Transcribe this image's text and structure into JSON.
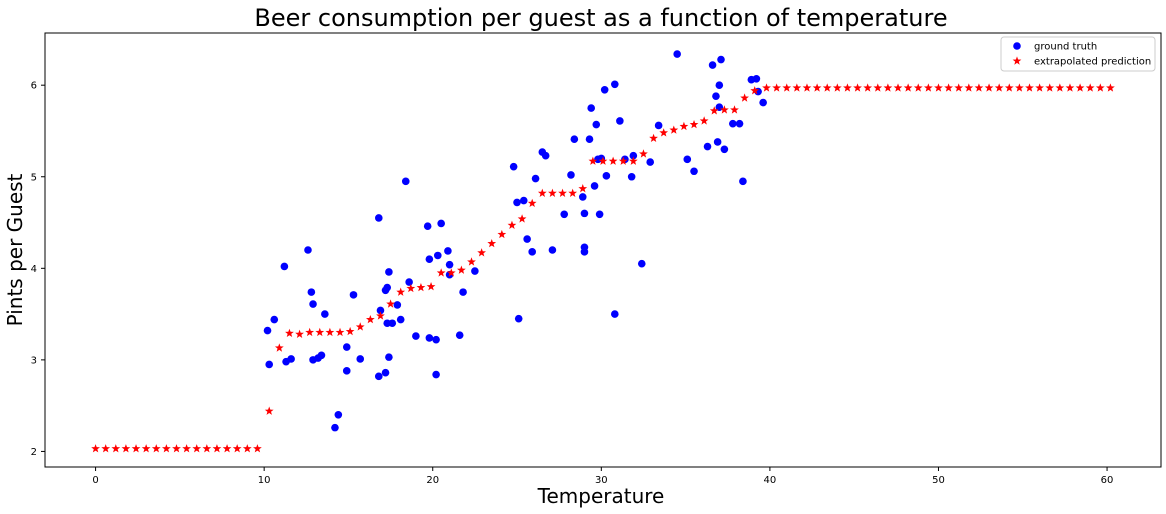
{
  "chart_data": {
    "type": "scatter",
    "title": "Beer consumption per guest as a function of temperature",
    "xlabel": "Temperature",
    "ylabel": "Pints per Guest",
    "xlim": [
      -3,
      63.2
    ],
    "ylim": [
      1.83,
      6.57
    ],
    "xticks": [
      0,
      10,
      20,
      30,
      40,
      50,
      60
    ],
    "yticks": [
      2,
      3,
      4,
      5,
      6
    ],
    "grid": false,
    "legend_position": "top-right",
    "series": [
      {
        "name": "ground truth",
        "marker": "circle",
        "color": "#0000ff",
        "points": [
          [
            10.2,
            3.32
          ],
          [
            10.3,
            2.95
          ],
          [
            10.6,
            3.44
          ],
          [
            11.2,
            4.02
          ],
          [
            11.3,
            2.98
          ],
          [
            11.6,
            3.01
          ],
          [
            12.6,
            4.2
          ],
          [
            12.8,
            3.74
          ],
          [
            12.9,
            3.61
          ],
          [
            12.9,
            3.0
          ],
          [
            13.2,
            3.02
          ],
          [
            13.4,
            3.05
          ],
          [
            13.6,
            3.5
          ],
          [
            14.2,
            2.26
          ],
          [
            14.4,
            2.4
          ],
          [
            14.9,
            2.88
          ],
          [
            14.9,
            3.14
          ],
          [
            15.3,
            3.71
          ],
          [
            15.7,
            3.01
          ],
          [
            16.8,
            4.55
          ],
          [
            16.8,
            2.82
          ],
          [
            16.9,
            3.54
          ],
          [
            17.2,
            3.76
          ],
          [
            17.2,
            2.86
          ],
          [
            17.3,
            3.79
          ],
          [
            17.3,
            3.4
          ],
          [
            17.4,
            3.96
          ],
          [
            17.4,
            3.03
          ],
          [
            17.6,
            3.4
          ],
          [
            17.9,
            3.6
          ],
          [
            18.1,
            3.44
          ],
          [
            18.4,
            4.95
          ],
          [
            18.6,
            3.85
          ],
          [
            19.0,
            3.26
          ],
          [
            19.7,
            4.46
          ],
          [
            19.8,
            4.1
          ],
          [
            19.8,
            3.24
          ],
          [
            20.2,
            3.22
          ],
          [
            20.2,
            2.84
          ],
          [
            20.3,
            4.14
          ],
          [
            20.5,
            4.49
          ],
          [
            20.9,
            4.19
          ],
          [
            21.0,
            4.04
          ],
          [
            21.0,
            3.93
          ],
          [
            21.6,
            3.27
          ],
          [
            21.8,
            3.74
          ],
          [
            22.5,
            3.97
          ],
          [
            24.8,
            5.11
          ],
          [
            25.0,
            4.72
          ],
          [
            25.1,
            3.45
          ],
          [
            25.4,
            4.74
          ],
          [
            25.6,
            4.32
          ],
          [
            25.9,
            4.18
          ],
          [
            26.1,
            4.98
          ],
          [
            26.5,
            5.27
          ],
          [
            26.7,
            5.23
          ],
          [
            27.1,
            4.2
          ],
          [
            27.8,
            4.59
          ],
          [
            28.2,
            5.02
          ],
          [
            28.4,
            5.41
          ],
          [
            28.9,
            4.78
          ],
          [
            29.0,
            4.6
          ],
          [
            29.0,
            4.23
          ],
          [
            29.0,
            4.18
          ],
          [
            29.3,
            5.41
          ],
          [
            29.4,
            5.75
          ],
          [
            29.6,
            4.9
          ],
          [
            29.7,
            5.57
          ],
          [
            29.8,
            5.19
          ],
          [
            29.9,
            4.59
          ],
          [
            30.0,
            5.2
          ],
          [
            30.2,
            5.95
          ],
          [
            30.3,
            5.01
          ],
          [
            30.8,
            6.01
          ],
          [
            30.8,
            3.5
          ],
          [
            31.1,
            5.61
          ],
          [
            31.4,
            5.19
          ],
          [
            31.8,
            5.0
          ],
          [
            31.9,
            5.23
          ],
          [
            32.4,
            4.05
          ],
          [
            32.9,
            5.16
          ],
          [
            33.4,
            5.56
          ],
          [
            34.5,
            6.34
          ],
          [
            35.1,
            5.19
          ],
          [
            35.5,
            5.06
          ],
          [
            36.3,
            5.33
          ],
          [
            36.6,
            6.22
          ],
          [
            36.8,
            5.88
          ],
          [
            36.9,
            5.38
          ],
          [
            37.0,
            6.0
          ],
          [
            37.0,
            5.76
          ],
          [
            37.1,
            6.28
          ],
          [
            37.3,
            5.3
          ],
          [
            37.8,
            5.58
          ],
          [
            38.2,
            5.58
          ],
          [
            38.4,
            4.95
          ],
          [
            38.9,
            6.06
          ],
          [
            39.2,
            6.07
          ],
          [
            39.3,
            5.93
          ],
          [
            39.6,
            5.81
          ]
        ]
      },
      {
        "name": "extrapolated prediction",
        "marker": "star",
        "color": "#ff0000",
        "points": [
          [
            0.0,
            2.03
          ],
          [
            0.6,
            2.03
          ],
          [
            1.2,
            2.03
          ],
          [
            1.8,
            2.03
          ],
          [
            2.4,
            2.03
          ],
          [
            3.0,
            2.03
          ],
          [
            3.6,
            2.03
          ],
          [
            4.2,
            2.03
          ],
          [
            4.8,
            2.03
          ],
          [
            5.4,
            2.03
          ],
          [
            6.0,
            2.03
          ],
          [
            6.6,
            2.03
          ],
          [
            7.2,
            2.03
          ],
          [
            7.8,
            2.03
          ],
          [
            8.4,
            2.03
          ],
          [
            9.0,
            2.03
          ],
          [
            9.6,
            2.03
          ],
          [
            10.3,
            2.44
          ],
          [
            10.9,
            3.13
          ],
          [
            11.5,
            3.29
          ],
          [
            12.1,
            3.28
          ],
          [
            12.7,
            3.3
          ],
          [
            13.3,
            3.3
          ],
          [
            13.9,
            3.3
          ],
          [
            14.5,
            3.3
          ],
          [
            15.1,
            3.31
          ],
          [
            15.7,
            3.36
          ],
          [
            16.3,
            3.44
          ],
          [
            16.9,
            3.48
          ],
          [
            17.5,
            3.61
          ],
          [
            18.1,
            3.74
          ],
          [
            18.7,
            3.78
          ],
          [
            19.3,
            3.79
          ],
          [
            19.9,
            3.8
          ],
          [
            20.5,
            3.95
          ],
          [
            21.1,
            3.95
          ],
          [
            21.7,
            3.98
          ],
          [
            22.3,
            4.07
          ],
          [
            22.9,
            4.17
          ],
          [
            23.5,
            4.27
          ],
          [
            24.1,
            4.37
          ],
          [
            24.7,
            4.47
          ],
          [
            25.3,
            4.54
          ],
          [
            25.9,
            4.71
          ],
          [
            26.5,
            4.82
          ],
          [
            27.1,
            4.82
          ],
          [
            27.7,
            4.82
          ],
          [
            28.3,
            4.82
          ],
          [
            28.9,
            4.87
          ],
          [
            29.5,
            5.17
          ],
          [
            30.1,
            5.17
          ],
          [
            30.7,
            5.17
          ],
          [
            31.3,
            5.17
          ],
          [
            31.9,
            5.17
          ],
          [
            32.5,
            5.25
          ],
          [
            33.1,
            5.42
          ],
          [
            33.7,
            5.48
          ],
          [
            34.3,
            5.51
          ],
          [
            34.9,
            5.55
          ],
          [
            35.5,
            5.57
          ],
          [
            36.1,
            5.61
          ],
          [
            36.7,
            5.72
          ],
          [
            37.3,
            5.73
          ],
          [
            37.9,
            5.73
          ],
          [
            38.5,
            5.86
          ],
          [
            39.1,
            5.94
          ],
          [
            39.8,
            5.97
          ],
          [
            40.4,
            5.97
          ],
          [
            41.0,
            5.97
          ],
          [
            41.6,
            5.97
          ],
          [
            42.2,
            5.97
          ],
          [
            42.8,
            5.97
          ],
          [
            43.4,
            5.97
          ],
          [
            44.0,
            5.97
          ],
          [
            44.6,
            5.97
          ],
          [
            45.2,
            5.97
          ],
          [
            45.8,
            5.97
          ],
          [
            46.4,
            5.97
          ],
          [
            47.0,
            5.97
          ],
          [
            47.6,
            5.97
          ],
          [
            48.2,
            5.97
          ],
          [
            48.8,
            5.97
          ],
          [
            49.4,
            5.97
          ],
          [
            50.0,
            5.97
          ],
          [
            50.6,
            5.97
          ],
          [
            51.2,
            5.97
          ],
          [
            51.8,
            5.97
          ],
          [
            52.4,
            5.97
          ],
          [
            53.0,
            5.97
          ],
          [
            53.6,
            5.97
          ],
          [
            54.2,
            5.97
          ],
          [
            54.8,
            5.97
          ],
          [
            55.4,
            5.97
          ],
          [
            56.0,
            5.97
          ],
          [
            56.6,
            5.97
          ],
          [
            57.2,
            5.97
          ],
          [
            57.8,
            5.97
          ],
          [
            58.4,
            5.97
          ],
          [
            59.0,
            5.97
          ],
          [
            59.6,
            5.97
          ],
          [
            60.2,
            5.97
          ]
        ]
      }
    ]
  }
}
